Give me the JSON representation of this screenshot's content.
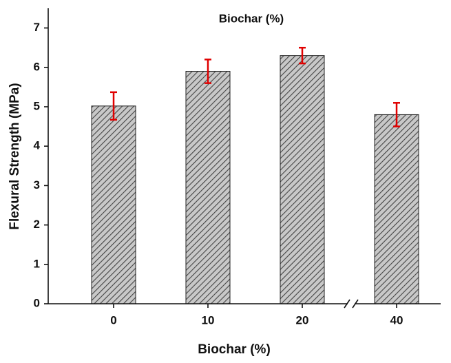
{
  "chart_data": {
    "type": "bar",
    "title": "Biochar (%)",
    "x_label": "Biochar (%)",
    "y_label": "Flexural Strength (MPa)",
    "categories": [
      "0",
      "10",
      "20",
      "40"
    ],
    "values": [
      5.02,
      5.9,
      6.3,
      4.8
    ],
    "errors": [
      0.35,
      0.3,
      0.2,
      0.3
    ],
    "color": "#555555",
    "error_color": "#e00000",
    "ylim": [
      0,
      7.5
    ],
    "yticks": [
      0,
      1,
      2,
      3,
      4,
      5,
      6,
      7
    ],
    "grid": false
  }
}
